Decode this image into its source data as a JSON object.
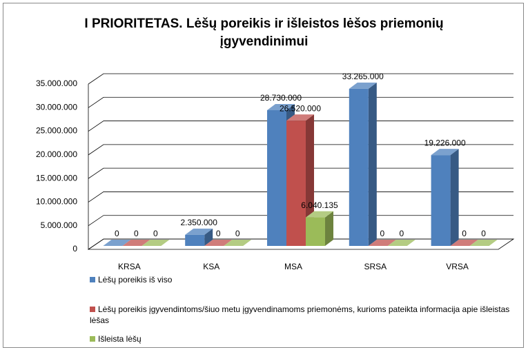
{
  "chart_data": {
    "type": "bar3d",
    "title": "I PRIORITETAS. Lėšų poreikis ir išleistos lėšos priemonių įgyvendinimui",
    "categories": [
      "KRSA",
      "KSA",
      "MSA",
      "SRSA",
      "VRSA"
    ],
    "series": [
      {
        "name": "Lėšų poreikis iš viso",
        "color": "#4f81bd",
        "values": [
          0,
          2350000,
          28730000,
          33265000,
          19226000
        ],
        "value_labels": [
          "0",
          "2.350.000",
          "28.730.000",
          "33.265.000",
          "19.226.000"
        ]
      },
      {
        "name": "Lėšų poreikis įgyvendintoms/šiuo metu įgyvendinamoms priemonėms, kurioms pateikta informacija apie išleistas lėšas",
        "color": "#c0504d",
        "values": [
          0,
          0,
          26520000,
          0,
          0
        ],
        "value_labels": [
          "0",
          "0",
          "26.520.000",
          "0",
          "0"
        ]
      },
      {
        "name": "Išleista lėšų",
        "color": "#9bbb59",
        "values": [
          0,
          0,
          6040135,
          0,
          0
        ],
        "value_labels": [
          "0",
          "0",
          "6.040.135",
          "0",
          "0"
        ]
      }
    ],
    "ylim": [
      0,
      35000000
    ],
    "yticks": [
      0,
      {
        "value": 5000000,
        "label": "5.000.000"
      },
      {
        "value": 10000000,
        "label": "10.000.000"
      },
      {
        "value": 15000000,
        "label": "15.000.000"
      },
      {
        "value": 20000000,
        "label": "20.000.000"
      },
      {
        "value": 25000000,
        "label": "25.000.000"
      },
      {
        "value": 30000000,
        "label": "30.000.000"
      },
      {
        "value": 35000000,
        "label": "35.000.000"
      }
    ],
    "grid": true,
    "legend": "bottom"
  }
}
